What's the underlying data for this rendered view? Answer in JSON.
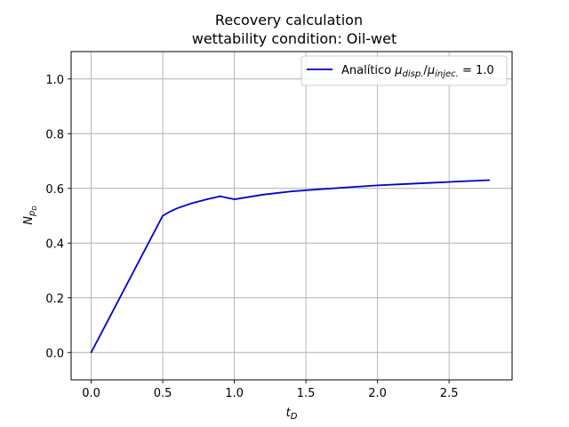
{
  "chart_data": {
    "type": "line",
    "title": "Recovery calculation",
    "subtitle": "wettability condition: Oil-wet",
    "xlabel": "t_D",
    "ylabel": "N_p_D",
    "xlim": [
      -0.14,
      2.94
    ],
    "ylim": [
      -0.1,
      1.1
    ],
    "xticks": [
      0.0,
      0.5,
      1.0,
      1.5,
      2.0,
      2.5
    ],
    "xtick_labels": [
      "0.0",
      "0.5",
      "1.0",
      "1.5",
      "2.0",
      "2.5"
    ],
    "yticks": [
      0.0,
      0.2,
      0.4,
      0.6,
      0.8,
      1.0
    ],
    "ytick_labels": [
      "0.0",
      "0.2",
      "0.4",
      "0.6",
      "0.8",
      "1.0"
    ],
    "grid": true,
    "legend_position": "upper-right",
    "series": [
      {
        "name": "Analítico μdisp./μinjec. = 1.0",
        "legend_prefix": "Analítico ",
        "legend_mu_disp": "disp.",
        "legend_mu_injec": "injec.",
        "legend_suffix": " = 1.0",
        "color": "#0000cc",
        "x": [
          0.0,
          0.5,
          0.55,
          0.6,
          0.7,
          0.8,
          0.9,
          1.0,
          1.2,
          1.4,
          1.6,
          1.8,
          2.0,
          2.2,
          2.4,
          2.6,
          2.78
        ],
        "y": [
          0.0,
          0.5,
          0.515,
          0.527,
          0.545,
          0.559,
          0.571,
          0.56,
          0.577,
          0.589,
          0.597,
          0.604,
          0.611,
          0.616,
          0.621,
          0.626,
          0.63
        ]
      }
    ]
  }
}
